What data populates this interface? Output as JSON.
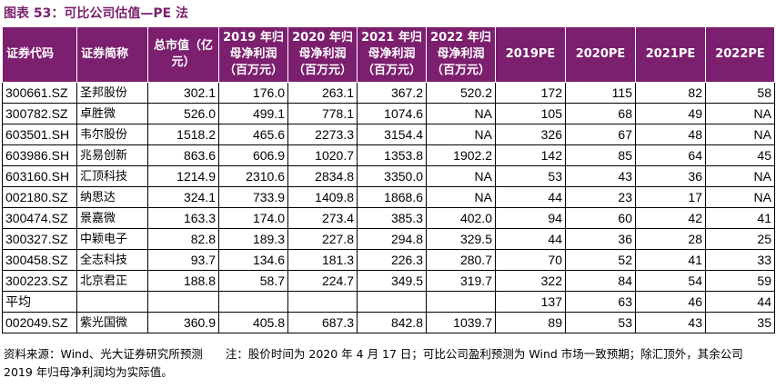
{
  "title": "图表 53：可比公司估值—PE 法",
  "headers": [
    "证券代码",
    "证券简称",
    "总市值（亿元）",
    "2019 年归母净利润（百万元）",
    "2020 年归母净利润（百万元）",
    "2021 年归母净利润（百万元）",
    "2022 年归母净利润（百万元）",
    "2019PE",
    "2020PE",
    "2021PE",
    "2022PE"
  ],
  "rows": [
    [
      "300661.SZ",
      "圣邦股份",
      "302.1",
      "176.0",
      "263.1",
      "367.2",
      "520.2",
      "172",
      "115",
      "82",
      "58"
    ],
    [
      "300782.SZ",
      "卓胜微",
      "526.0",
      "499.1",
      "778.1",
      "1074.6",
      "NA",
      "105",
      "68",
      "49",
      "NA"
    ],
    [
      "603501.SH",
      "韦尔股份",
      "1518.2",
      "465.6",
      "2273.3",
      "3154.4",
      "NA",
      "326",
      "67",
      "48",
      "NA"
    ],
    [
      "603986.SH",
      "兆易创新",
      "863.6",
      "606.9",
      "1020.7",
      "1353.8",
      "1902.2",
      "142",
      "85",
      "64",
      "45"
    ],
    [
      "603160.SH",
      "汇顶科技",
      "1214.9",
      "2310.6",
      "2834.8",
      "3350.0",
      "NA",
      "53",
      "43",
      "36",
      "NA"
    ],
    [
      "002180.SZ",
      "纳思达",
      "324.1",
      "733.9",
      "1409.8",
      "1868.6",
      "NA",
      "44",
      "23",
      "17",
      "NA"
    ],
    [
      "300474.SZ",
      "景嘉微",
      "163.3",
      "174.0",
      "273.4",
      "385.3",
      "402.0",
      "94",
      "60",
      "42",
      "41"
    ],
    [
      "300327.SZ",
      "中颖电子",
      "82.8",
      "189.3",
      "227.8",
      "294.8",
      "329.5",
      "44",
      "36",
      "28",
      "25"
    ],
    [
      "300458.SZ",
      "全志科技",
      "93.7",
      "134.6",
      "181.3",
      "226.3",
      "280.7",
      "70",
      "52",
      "41",
      "33"
    ],
    [
      "300223.SZ",
      "北京君正",
      "188.8",
      "58.7",
      "224.7",
      "349.5",
      "319.7",
      "322",
      "84",
      "54",
      "59"
    ],
    [
      "平均",
      "",
      "",
      "",
      "",
      "",
      "",
      "137",
      "63",
      "46",
      "44"
    ],
    [
      "002049.SZ",
      "紫光国微",
      "360.9",
      "405.8",
      "687.3",
      "842.8",
      "1039.7",
      "89",
      "53",
      "43",
      "35"
    ]
  ],
  "note": "资料来源：Wind、光大证券研究所预测　　注：股价时间为 2020 年 4 月 17 日；可比公司盈利预测为 Wind 市场一致预期；除汇顶外，其余公司 2019 年归母净利润均为实际值。"
}
